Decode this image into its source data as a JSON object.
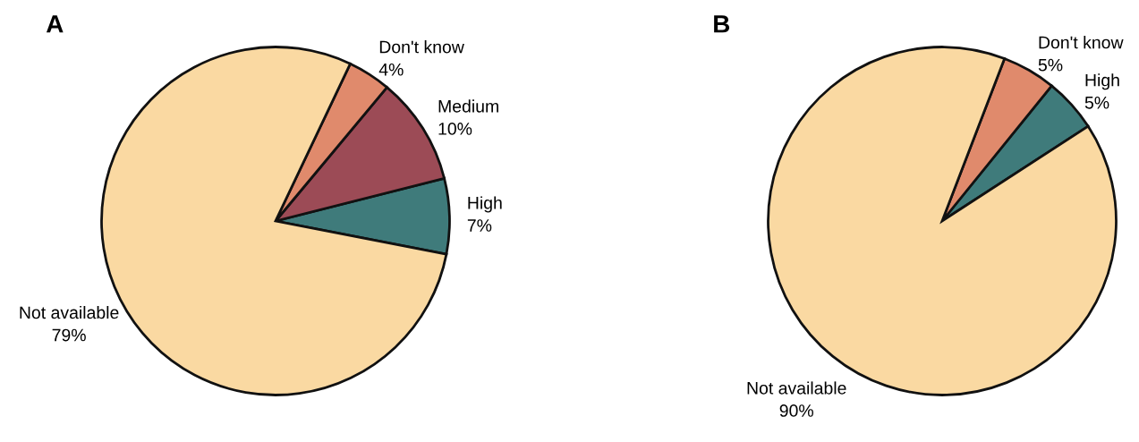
{
  "chart_data": [
    {
      "type": "pie",
      "title": "A",
      "categories": [
        "High",
        "Medium",
        "Don't know",
        "Not available"
      ],
      "values": [
        7,
        10,
        4,
        79
      ],
      "value_labels": [
        "7%",
        "10%",
        "4%",
        "79%"
      ],
      "colors": [
        "#3f7b7b",
        "#9c4b56",
        "#e08a6c",
        "#fad9a2"
      ]
    },
    {
      "type": "pie",
      "title": "B",
      "categories": [
        "High",
        "Don't know",
        "Not available"
      ],
      "values": [
        5,
        5,
        90
      ],
      "value_labels": [
        "5%",
        "5%",
        "90%"
      ],
      "colors": [
        "#3f7b7b",
        "#e08a6c",
        "#fad9a2"
      ]
    }
  ]
}
